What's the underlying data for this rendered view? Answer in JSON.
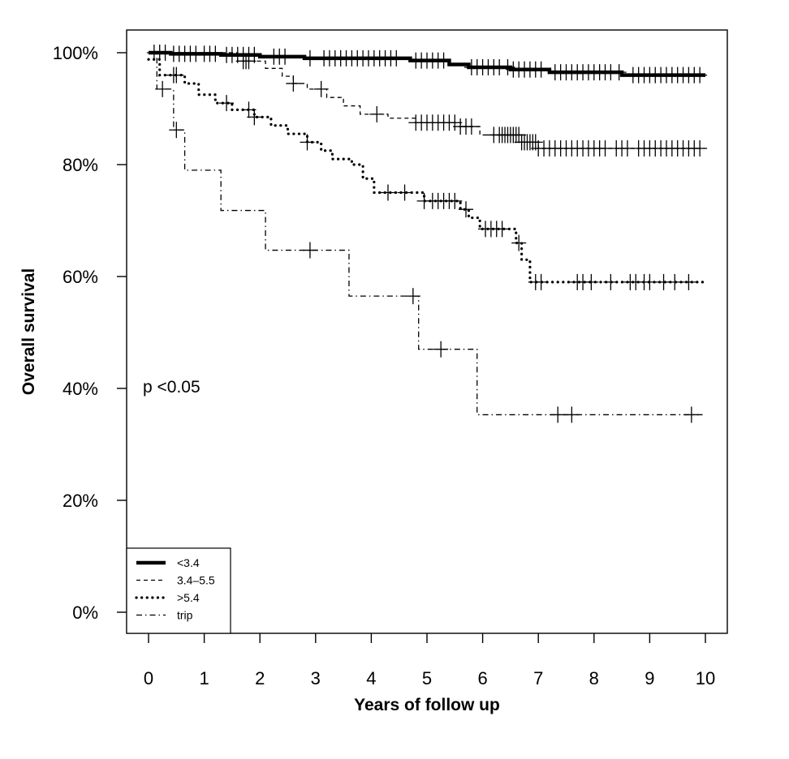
{
  "chart_data": {
    "type": "line",
    "xlabel": "Years of follow up",
    "ylabel": "Overall survival",
    "xlim": [
      0,
      10
    ],
    "ylim": [
      0,
      100
    ],
    "x_ticks": [
      0,
      1,
      2,
      3,
      4,
      5,
      6,
      7,
      8,
      9,
      10
    ],
    "y_ticks": [
      0,
      20,
      40,
      60,
      80,
      100
    ],
    "y_tick_labels": [
      "0%",
      "20%",
      "40%",
      "60%",
      "80%",
      "100%"
    ],
    "annotation": "p <0.05",
    "legend_position": "bottom-left",
    "grid": false,
    "series": [
      {
        "name": "<3.4",
        "line_style": "solid-thick",
        "step_points": [
          [
            0,
            100
          ],
          [
            0.4,
            99.8
          ],
          [
            1.3,
            99.6
          ],
          [
            2.0,
            99.3
          ],
          [
            2.8,
            99.0
          ],
          [
            4.7,
            98.6
          ],
          [
            5.4,
            97.9
          ],
          [
            5.75,
            97.4
          ],
          [
            6.5,
            97.0
          ],
          [
            7.2,
            96.5
          ],
          [
            8.5,
            96.0
          ],
          [
            10.0,
            96.0
          ]
        ],
        "censor_times": [
          0.1,
          0.2,
          0.3,
          0.45,
          0.55,
          0.65,
          0.75,
          0.85,
          1.0,
          1.1,
          1.2,
          1.4,
          1.5,
          1.6,
          1.7,
          1.8,
          1.9,
          2.25,
          2.35,
          2.45,
          2.9,
          3.15,
          3.25,
          3.35,
          3.45,
          3.55,
          3.65,
          3.75,
          3.85,
          3.95,
          4.05,
          4.15,
          4.25,
          4.35,
          4.45,
          4.8,
          4.9,
          5.0,
          5.1,
          5.2,
          5.3,
          5.8,
          5.9,
          6.0,
          6.1,
          6.2,
          6.3,
          6.45,
          6.55,
          6.65,
          6.75,
          6.85,
          6.95,
          7.05,
          7.3,
          7.4,
          7.5,
          7.6,
          7.7,
          7.8,
          7.9,
          8.0,
          8.1,
          8.2,
          8.3,
          8.45,
          8.7,
          8.8,
          8.9,
          9.0,
          9.1,
          9.2,
          9.3,
          9.4,
          9.5,
          9.6,
          9.7,
          9.8,
          9.9
        ]
      },
      {
        "name": "3.4–5.5",
        "line_style": "dashed",
        "step_points": [
          [
            0,
            100
          ],
          [
            1.6,
            98.5
          ],
          [
            2.1,
            97.2
          ],
          [
            2.4,
            95.8
          ],
          [
            2.6,
            94.5
          ],
          [
            2.85,
            93.5
          ],
          [
            3.2,
            92.0
          ],
          [
            3.5,
            90.5
          ],
          [
            3.8,
            89.0
          ],
          [
            4.3,
            88.3
          ],
          [
            4.8,
            87.5
          ],
          [
            5.6,
            86.8
          ],
          [
            5.95,
            85.3
          ],
          [
            6.7,
            84.0
          ],
          [
            7.0,
            82.9
          ],
          [
            10.0,
            82.9
          ]
        ],
        "censor_times": [
          1.7,
          1.75,
          1.8,
          2.6,
          3.1,
          4.1,
          4.8,
          4.9,
          5.0,
          5.1,
          5.2,
          5.3,
          5.4,
          5.5,
          5.6,
          5.7,
          5.8,
          6.2,
          6.3,
          6.35,
          6.4,
          6.45,
          6.5,
          6.55,
          6.6,
          6.65,
          6.7,
          6.75,
          6.8,
          6.85,
          6.9,
          6.95,
          7.0,
          7.1,
          7.2,
          7.3,
          7.4,
          7.5,
          7.6,
          7.7,
          7.8,
          7.9,
          8.0,
          8.1,
          8.2,
          8.4,
          8.5,
          8.6,
          8.8,
          8.9,
          9.0,
          9.1,
          9.2,
          9.3,
          9.4,
          9.5,
          9.6,
          9.7,
          9.8,
          9.9
        ]
      },
      {
        "name": ">5.4",
        "line_style": "dotted",
        "step_points": [
          [
            0,
            98.8
          ],
          [
            0.2,
            96.0
          ],
          [
            0.65,
            94.5
          ],
          [
            0.9,
            92.5
          ],
          [
            1.2,
            91.0
          ],
          [
            1.5,
            89.8
          ],
          [
            1.9,
            88.5
          ],
          [
            2.2,
            87.0
          ],
          [
            2.5,
            85.5
          ],
          [
            2.85,
            84.0
          ],
          [
            3.1,
            82.5
          ],
          [
            3.3,
            81.0
          ],
          [
            3.65,
            80.0
          ],
          [
            3.85,
            77.5
          ],
          [
            4.05,
            75.0
          ],
          [
            4.95,
            73.5
          ],
          [
            5.6,
            72.0
          ],
          [
            5.75,
            70.5
          ],
          [
            5.95,
            68.5
          ],
          [
            6.6,
            66.0
          ],
          [
            6.7,
            63.0
          ],
          [
            6.85,
            59.0
          ],
          [
            10.0,
            59.0
          ]
        ],
        "censor_times": [
          0.45,
          0.5,
          1.4,
          1.8,
          1.9,
          2.85,
          4.3,
          4.6,
          4.95,
          5.1,
          5.2,
          5.3,
          5.4,
          5.5,
          5.7,
          6.05,
          6.15,
          6.25,
          6.35,
          6.65,
          6.95,
          7.05,
          7.7,
          7.8,
          7.95,
          8.3,
          8.65,
          8.75,
          8.9,
          9.0,
          9.25,
          9.45,
          9.7
        ]
      },
      {
        "name": "trip",
        "line_style": "dashdot",
        "step_points": [
          [
            0,
            100
          ],
          [
            0.15,
            93.5
          ],
          [
            0.45,
            86.2
          ],
          [
            0.65,
            79.0
          ],
          [
            1.3,
            71.8
          ],
          [
            2.1,
            64.7
          ],
          [
            3.6,
            56.5
          ],
          [
            4.85,
            47.0
          ],
          [
            5.9,
            35.3
          ],
          [
            10.0,
            35.3
          ]
        ],
        "censor_times": [
          0.25,
          0.5,
          2.9,
          4.75,
          5.25,
          7.35,
          7.6,
          9.75
        ]
      }
    ]
  }
}
